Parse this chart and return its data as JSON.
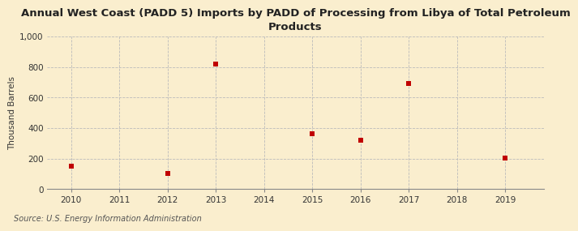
{
  "title": "Annual West Coast (PADD 5) Imports by PADD of Processing from Libya of Total Petroleum\nProducts",
  "ylabel": "Thousand Barrels",
  "source": "Source: U.S. Energy Information Administration",
  "x_values": [
    2010,
    2012,
    2013,
    2015,
    2016,
    2017,
    2019
  ],
  "y_values": [
    148,
    100,
    820,
    360,
    320,
    690,
    205
  ],
  "marker_color": "#c00000",
  "marker": "s",
  "marker_size": 4,
  "xlim": [
    2009.5,
    2019.8
  ],
  "ylim": [
    0,
    1000
  ],
  "yticks": [
    0,
    200,
    400,
    600,
    800,
    1000
  ],
  "ytick_labels": [
    "0",
    "200",
    "400",
    "600",
    "800",
    "1,000"
  ],
  "xticks": [
    2010,
    2011,
    2012,
    2013,
    2014,
    2015,
    2016,
    2017,
    2018,
    2019
  ],
  "background_color": "#faeece",
  "grid_color": "#bbbbbb",
  "title_fontsize": 9.5,
  "axis_label_fontsize": 7.5,
  "tick_fontsize": 7.5,
  "source_fontsize": 7
}
